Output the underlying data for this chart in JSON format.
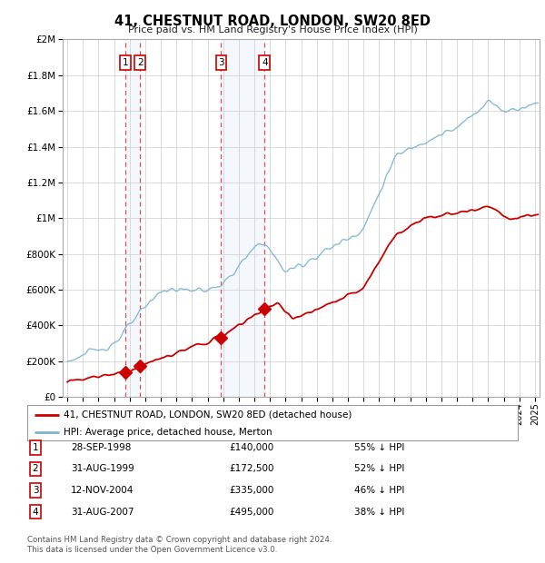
{
  "title": "41, CHESTNUT ROAD, LONDON, SW20 8ED",
  "subtitle": "Price paid vs. HM Land Registry's House Price Index (HPI)",
  "legend_property": "41, CHESTNUT ROAD, LONDON, SW20 8ED (detached house)",
  "legend_hpi": "HPI: Average price, detached house, Merton",
  "footer1": "Contains HM Land Registry data © Crown copyright and database right 2024.",
  "footer2": "This data is licensed under the Open Government Licence v3.0.",
  "sale_color": "#cc0000",
  "hpi_color": "#7cb4d4",
  "transactions": [
    {
      "num": 1,
      "date": "28-SEP-1998",
      "price": 140000,
      "price_str": "£140,000",
      "pct": "55%",
      "x_year": 1998.74
    },
    {
      "num": 2,
      "date": "31-AUG-1999",
      "price": 172500,
      "price_str": "£172,500",
      "pct": "52%",
      "x_year": 1999.66
    },
    {
      "num": 3,
      "date": "12-NOV-2004",
      "price": 335000,
      "price_str": "£335,000",
      "pct": "46%",
      "x_year": 2004.87
    },
    {
      "num": 4,
      "date": "31-AUG-2007",
      "price": 495000,
      "price_str": "£495,000",
      "pct": "38%",
      "x_year": 2007.66
    }
  ],
  "ylim": [
    0,
    2000000
  ],
  "yticks": [
    0,
    200000,
    400000,
    600000,
    800000,
    1000000,
    1200000,
    1400000,
    1600000,
    1800000,
    2000000
  ],
  "xlim_start": 1994.7,
  "xlim_end": 2025.3
}
